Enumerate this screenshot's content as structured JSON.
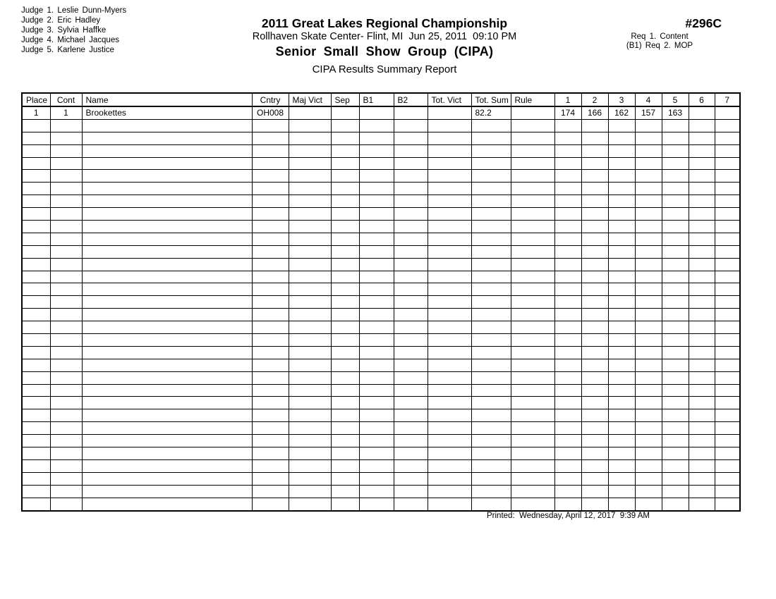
{
  "judges": [
    "Judge 1. Leslie Dunn-Myers",
    "Judge 2. Eric Hadley",
    "Judge 3. Sylvia Haffke",
    "Judge 4. Michael Jacques",
    "Judge 5. Karlene Justice"
  ],
  "header": {
    "title": "2011 Great Lakes Regional Championship",
    "venue_line": "Rollhaven Skate Center- Flint, MI  Jun 25, 2011  09:10 PM",
    "event_title": "Senior Small Show Group (CIPA)",
    "report_title": "CIPA Results Summary Report",
    "event_number": "#296C",
    "requirements": [
      "Req 1. Content",
      "(B1) Req 2. MOP"
    ]
  },
  "table": {
    "columns": [
      "Place",
      "Cont",
      "Name",
      "Cntry",
      "Maj Vict",
      "Sep",
      "B1",
      "B2",
      "Tot. Vict",
      "Tot. Sum",
      "Rule",
      "1",
      "2",
      "3",
      "4",
      "5",
      "6",
      "7"
    ],
    "rows": [
      [
        "1",
        "1",
        "Brookettes",
        "OH008",
        "",
        "",
        "",
        "",
        "",
        "82.2",
        "",
        "174",
        "166",
        "162",
        "157",
        "163",
        "",
        ""
      ]
    ],
    "empty_row_count": 31
  },
  "footer": {
    "printed": "Printed:  Wednesday, April 12, 2017  9:39 AM"
  }
}
